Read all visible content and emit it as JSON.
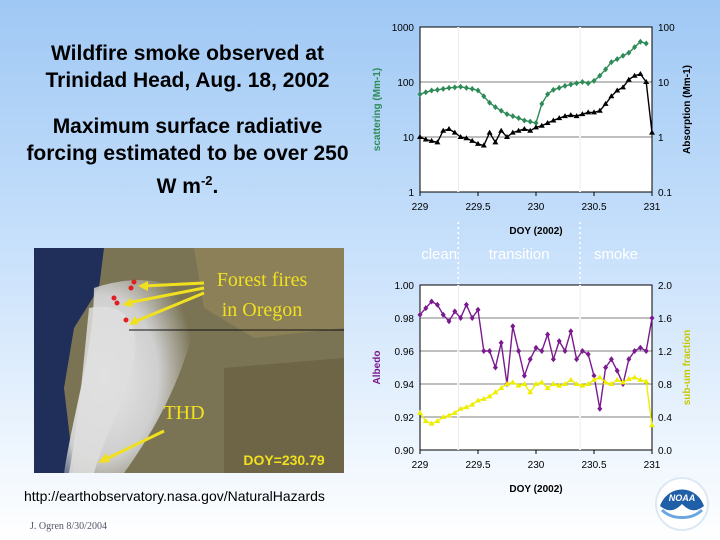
{
  "title": "Wildfire smoke observed at Trinidad Head, Aug. 18, 2002",
  "subtitle_main": "Maximum surface radiative forcing estimated to be over 250 W m",
  "subtitle_sup": "-2",
  "subtitle_end": ".",
  "photo": {
    "label_fires_line1": "Forest fires",
    "label_fires_line2": "in Oregon",
    "label_thd": "THD",
    "label_doy": "DOY=230.79"
  },
  "url": "http://earthobservatory.nasa.gov/NaturalHazards",
  "credit": "J. Ogren 8/30/2004",
  "logo_text": "NOAA",
  "chart_data": [
    {
      "type": "line",
      "xlabel": "DOY (2002)",
      "ylabel_left": "scattering (Mm-1)",
      "ylabel_right": "Absorption (Mm-1)",
      "xlim": [
        229,
        231
      ],
      "ylim_left": [
        1,
        1000
      ],
      "ylim_right": [
        0.1,
        100
      ],
      "y_scale": "log",
      "x_ticks": [
        "229",
        "229.5",
        "230",
        "230.5",
        "231"
      ],
      "y_ticks_left": [
        "1",
        "10",
        "100",
        "1000"
      ],
      "y_ticks_right": [
        "0.1",
        "1",
        "10",
        "100"
      ],
      "grid": true,
      "vlines": [
        229.33,
        230.38
      ],
      "series": [
        {
          "axis": "left",
          "color": "#2e8b57",
          "x": [
            229.0,
            229.05,
            229.1,
            229.15,
            229.2,
            229.25,
            229.3,
            229.35,
            229.4,
            229.45,
            229.5,
            229.55,
            229.6,
            229.65,
            229.7,
            229.75,
            229.8,
            229.85,
            229.9,
            229.95,
            230.0,
            230.05,
            230.1,
            230.15,
            230.2,
            230.25,
            230.3,
            230.35,
            230.4,
            230.45,
            230.5,
            230.55,
            230.6,
            230.65,
            230.7,
            230.75,
            230.8,
            230.85,
            230.9,
            230.95
          ],
          "y": [
            60,
            65,
            70,
            72,
            75,
            78,
            80,
            82,
            78,
            75,
            70,
            55,
            42,
            35,
            30,
            26,
            24,
            22,
            20,
            19,
            18,
            40,
            60,
            72,
            78,
            85,
            90,
            95,
            100,
            95,
            105,
            130,
            170,
            230,
            260,
            300,
            340,
            430,
            540,
            500
          ]
        },
        {
          "axis": "right",
          "color": "#000000",
          "x": [
            229.0,
            229.05,
            229.1,
            229.15,
            229.2,
            229.25,
            229.3,
            229.35,
            229.4,
            229.45,
            229.5,
            229.55,
            229.6,
            229.65,
            229.7,
            229.75,
            229.8,
            229.85,
            229.9,
            229.95,
            230.0,
            230.05,
            230.1,
            230.15,
            230.2,
            230.25,
            230.3,
            230.35,
            230.4,
            230.45,
            230.5,
            230.55,
            230.6,
            230.65,
            230.7,
            230.75,
            230.8,
            230.85,
            230.9,
            230.95,
            231.0
          ],
          "y": [
            1.0,
            0.9,
            0.85,
            0.8,
            1.3,
            1.4,
            1.2,
            1.0,
            0.95,
            0.85,
            0.75,
            0.7,
            1.2,
            0.8,
            1.3,
            1.0,
            1.2,
            1.3,
            1.4,
            1.3,
            1.5,
            1.6,
            1.8,
            2.0,
            2.2,
            2.4,
            2.5,
            2.4,
            2.6,
            2.8,
            2.8,
            3.0,
            4.0,
            5.5,
            7.0,
            8.0,
            11.0,
            13.0,
            14.0,
            10.0,
            1.2
          ]
        }
      ],
      "phase_labels": [
        "clean",
        "transition",
        "smoke"
      ]
    },
    {
      "type": "line",
      "xlabel": "DOY (2002)",
      "ylabel_left": "Albedo",
      "ylabel_right": "sub-um fraction",
      "xlim": [
        229,
        231
      ],
      "ylim_left": [
        0.9,
        1.0
      ],
      "ylim_right": [
        0.0,
        2.0
      ],
      "x_ticks": [
        "229",
        "229.5",
        "230",
        "230.5",
        "231"
      ],
      "y_ticks_left": [
        "0.90",
        "0.92",
        "0.94",
        "0.96",
        "0.98",
        "1.00"
      ],
      "y_ticks_right": [
        "0.0",
        "0.4",
        "0.8",
        "1.2",
        "1.6",
        "2.0"
      ],
      "grid": true,
      "vlines": [
        229.33,
        230.38
      ],
      "series": [
        {
          "axis": "left",
          "color": "#7b1a8f",
          "x": [
            229.0,
            229.05,
            229.1,
            229.15,
            229.2,
            229.25,
            229.3,
            229.35,
            229.4,
            229.45,
            229.5,
            229.55,
            229.6,
            229.65,
            229.7,
            229.75,
            229.8,
            229.85,
            229.9,
            229.95,
            230.0,
            230.05,
            230.1,
            230.15,
            230.2,
            230.25,
            230.3,
            230.35,
            230.4,
            230.45,
            230.5,
            230.55,
            230.6,
            230.65,
            230.7,
            230.75,
            230.8,
            230.85,
            230.9,
            230.95,
            231.0
          ],
          "y": [
            0.982,
            0.986,
            0.99,
            0.988,
            0.982,
            0.978,
            0.984,
            0.98,
            0.988,
            0.98,
            0.985,
            0.96,
            0.96,
            0.95,
            0.965,
            0.94,
            0.975,
            0.96,
            0.945,
            0.955,
            0.962,
            0.96,
            0.97,
            0.955,
            0.966,
            0.96,
            0.972,
            0.955,
            0.96,
            0.958,
            0.945,
            0.925,
            0.95,
            0.955,
            0.948,
            0.94,
            0.955,
            0.96,
            0.962,
            0.96,
            0.98
          ]
        },
        {
          "axis": "right",
          "color": "#eeee00",
          "x": [
            229.0,
            229.05,
            229.1,
            229.15,
            229.2,
            229.25,
            229.3,
            229.35,
            229.4,
            229.45,
            229.5,
            229.55,
            229.6,
            229.65,
            229.7,
            229.75,
            229.8,
            229.85,
            229.9,
            229.95,
            230.0,
            230.05,
            230.1,
            230.15,
            230.2,
            230.25,
            230.3,
            230.35,
            230.4,
            230.45,
            230.5,
            230.55,
            230.6,
            230.65,
            230.7,
            230.75,
            230.8,
            230.85,
            230.9,
            230.95,
            231.0
          ],
          "y": [
            0.45,
            0.35,
            0.32,
            0.35,
            0.4,
            0.42,
            0.45,
            0.5,
            0.52,
            0.55,
            0.6,
            0.62,
            0.65,
            0.7,
            0.75,
            0.8,
            0.82,
            0.78,
            0.8,
            0.7,
            0.8,
            0.82,
            0.75,
            0.8,
            0.78,
            0.8,
            0.85,
            0.8,
            0.78,
            0.8,
            0.85,
            0.88,
            0.82,
            0.8,
            0.85,
            0.82,
            0.86,
            0.88,
            0.85,
            0.83,
            0.3
          ]
        }
      ]
    }
  ]
}
